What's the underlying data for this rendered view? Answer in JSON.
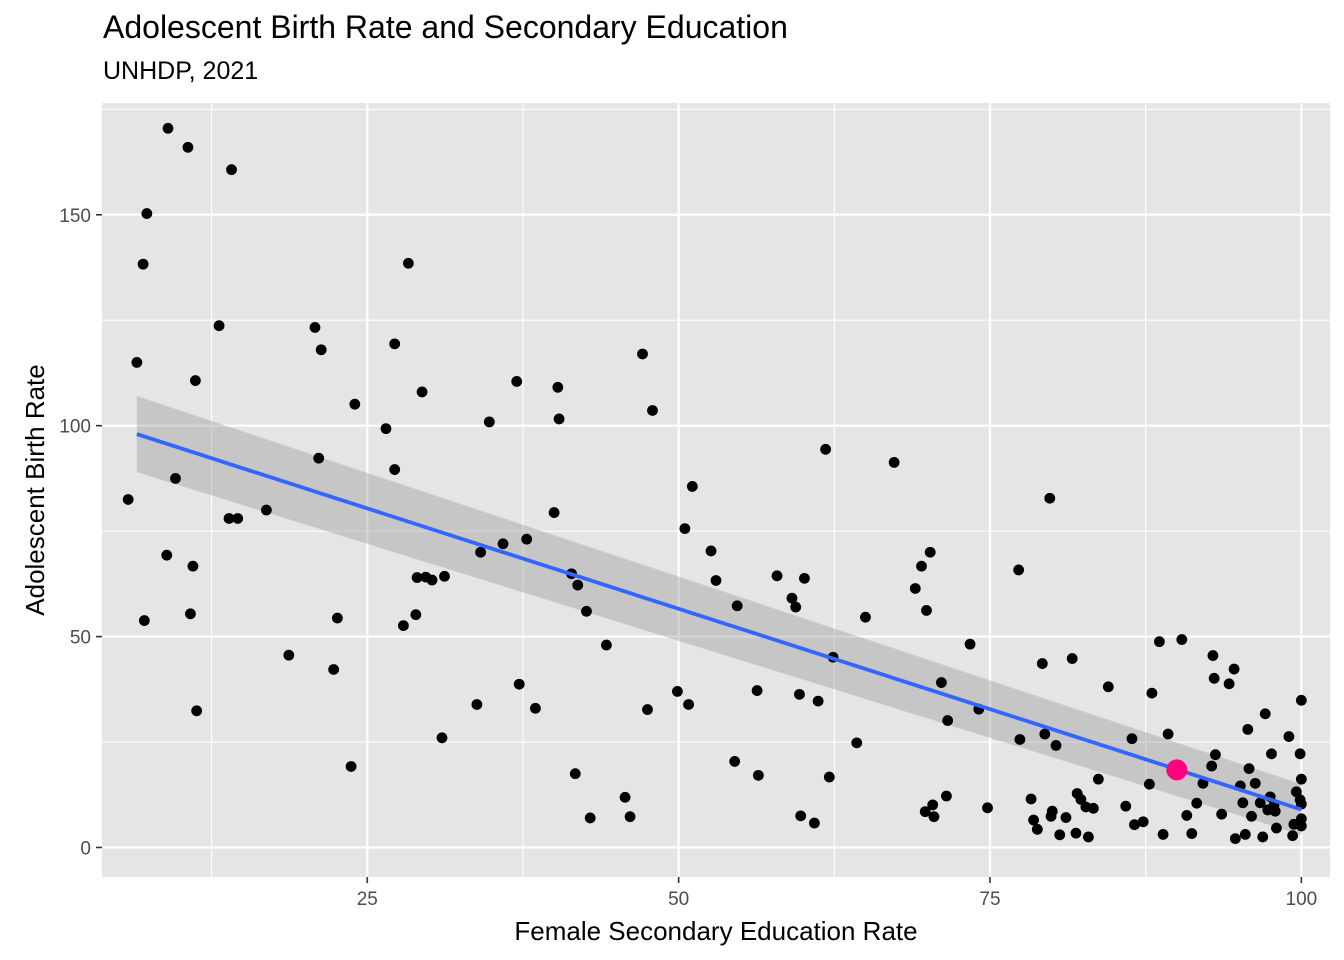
{
  "chart_data": {
    "type": "scatter",
    "title": "Adolescent Birth Rate and Secondary Education",
    "subtitle": "UNHDP, 2021",
    "xlabel": "Female Secondary Education Rate",
    "ylabel": "Adolescent Birth Rate",
    "xlim": [
      3.7,
      102.3
    ],
    "ylim": [
      -7,
      176.5
    ],
    "xticks": [
      25,
      50,
      75,
      100
    ],
    "yticks": [
      0,
      50,
      100,
      150
    ],
    "grid": true,
    "point_color": "#000000",
    "highlight_color": "#FF0080",
    "trend_color": "#3366FF",
    "band_color": "#999999",
    "panel_color": "#E5E5E5",
    "highlight": {
      "x": 90.0,
      "y": 18.4
    },
    "trend": {
      "x": [
        6.5,
        100
      ],
      "y": [
        98,
        9
      ],
      "band_lower": [
        89,
        3
      ],
      "band_upper": [
        107,
        15
      ]
    },
    "points": [
      [
        5.8,
        82.5
      ],
      [
        6.5,
        115
      ],
      [
        7,
        138.3
      ],
      [
        7.3,
        150.3
      ],
      [
        7.1,
        53.8
      ],
      [
        9,
        170.5
      ],
      [
        8.9,
        69.3
      ],
      [
        9.6,
        87.5
      ],
      [
        10.6,
        166
      ],
      [
        10.8,
        55.4
      ],
      [
        11,
        66.7
      ],
      [
        11.2,
        110.7
      ],
      [
        11.3,
        32.4
      ],
      [
        13.1,
        123.7
      ],
      [
        13.9,
        78
      ],
      [
        14.1,
        160.7
      ],
      [
        14.6,
        78
      ],
      [
        16.9,
        80
      ],
      [
        18.7,
        45.6
      ],
      [
        20.8,
        123.3
      ],
      [
        21.1,
        92.3
      ],
      [
        21.3,
        118
      ],
      [
        22.3,
        42.2
      ],
      [
        22.6,
        54.4
      ],
      [
        23.7,
        19.2
      ],
      [
        24,
        105.1
      ],
      [
        26.5,
        99.3
      ],
      [
        27.2,
        119.4
      ],
      [
        27.2,
        89.6
      ],
      [
        27.9,
        52.6
      ],
      [
        28.3,
        138.5
      ],
      [
        28.9,
        55.2
      ],
      [
        29,
        64
      ],
      [
        29.4,
        108
      ],
      [
        29.7,
        64.1
      ],
      [
        30.2,
        63.4
      ],
      [
        31,
        26
      ],
      [
        31.2,
        64.3
      ],
      [
        33.8,
        33.9
      ],
      [
        34.1,
        70
      ],
      [
        34.8,
        100.9
      ],
      [
        35.9,
        72
      ],
      [
        37,
        110.5
      ],
      [
        37.2,
        38.7
      ],
      [
        37.8,
        73.1
      ],
      [
        38.5,
        33
      ],
      [
        40,
        79.4
      ],
      [
        40.3,
        109.1
      ],
      [
        40.4,
        101.6
      ],
      [
        41.4,
        64.9
      ],
      [
        41.7,
        17.5
      ],
      [
        41.9,
        62.2
      ],
      [
        42.6,
        56
      ],
      [
        42.9,
        7
      ],
      [
        44.2,
        48
      ],
      [
        45.7,
        11.9
      ],
      [
        46.1,
        7.3
      ],
      [
        47.1,
        117
      ],
      [
        47.5,
        32.7
      ],
      [
        47.9,
        103.6
      ],
      [
        49.9,
        37
      ],
      [
        50.5,
        75.6
      ],
      [
        50.8,
        33.9
      ],
      [
        51.1,
        85.6
      ],
      [
        52.6,
        70.3
      ],
      [
        53,
        63.3
      ],
      [
        54.5,
        20.4
      ],
      [
        54.7,
        57.3
      ],
      [
        56.3,
        37.2
      ],
      [
        56.4,
        17.1
      ],
      [
        57.9,
        64.4
      ],
      [
        59.1,
        59.1
      ],
      [
        59.4,
        57
      ],
      [
        59.7,
        36.3
      ],
      [
        59.8,
        7.5
      ],
      [
        60.1,
        63.8
      ],
      [
        60.9,
        5.8
      ],
      [
        61.2,
        34.7
      ],
      [
        61.8,
        94.4
      ],
      [
        62.1,
        16.7
      ],
      [
        62.4,
        45.1
      ],
      [
        64.3,
        24.8
      ],
      [
        65,
        54.6
      ],
      [
        67.3,
        91.3
      ],
      [
        69,
        61.4
      ],
      [
        69.5,
        66.7
      ],
      [
        69.8,
        8.5
      ],
      [
        69.9,
        56.2
      ],
      [
        70.2,
        70
      ],
      [
        70.4,
        10.1
      ],
      [
        70.5,
        7.3
      ],
      [
        71.1,
        39.1
      ],
      [
        71.5,
        12.2
      ],
      [
        71.6,
        30.1
      ],
      [
        73.4,
        48.2
      ],
      [
        74.1,
        32.8
      ],
      [
        74.8,
        9.4
      ],
      [
        77.3,
        65.8
      ],
      [
        77.4,
        25.6
      ],
      [
        78.3,
        11.5
      ],
      [
        78.5,
        6.5
      ],
      [
        78.8,
        4.3
      ],
      [
        79.2,
        43.6
      ],
      [
        79.4,
        26.9
      ],
      [
        79.9,
        7.4
      ],
      [
        79.8,
        82.8
      ],
      [
        80,
        8.6
      ],
      [
        80.3,
        24.2
      ],
      [
        80.6,
        3
      ],
      [
        81.1,
        7.1
      ],
      [
        81.6,
        44.8
      ],
      [
        81.9,
        3.4
      ],
      [
        82,
        12.8
      ],
      [
        82.3,
        11.4
      ],
      [
        82.7,
        9.6
      ],
      [
        82.9,
        2.5
      ],
      [
        83.3,
        9.3
      ],
      [
        83.7,
        16.2
      ],
      [
        84.5,
        38.1
      ],
      [
        85.9,
        9.8
      ],
      [
        86.4,
        25.8
      ],
      [
        86.6,
        5.4
      ],
      [
        87.3,
        6.1
      ],
      [
        87.8,
        15
      ],
      [
        88,
        36.6
      ],
      [
        88.6,
        48.8
      ],
      [
        88.9,
        3.1
      ],
      [
        89.3,
        26.9
      ],
      [
        90.4,
        49.3
      ],
      [
        90.8,
        7.6
      ],
      [
        91.2,
        3.3
      ],
      [
        91.6,
        10.5
      ],
      [
        92.1,
        15.2
      ],
      [
        92.8,
        19.3
      ],
      [
        92.9,
        45.5
      ],
      [
        93,
        40.1
      ],
      [
        93.1,
        22
      ],
      [
        93.6,
        7.9
      ],
      [
        94.2,
        38.8
      ],
      [
        94.6,
        42.3
      ],
      [
        94.7,
        2.1
      ],
      [
        95.1,
        14.6
      ],
      [
        95.3,
        10.6
      ],
      [
        95.5,
        3.1
      ],
      [
        95.7,
        28
      ],
      [
        95.8,
        18.7
      ],
      [
        96,
        7.4
      ],
      [
        96.3,
        15.2
      ],
      [
        96.7,
        10.6
      ],
      [
        96.9,
        2.5
      ],
      [
        97.1,
        31.7
      ],
      [
        97.3,
        8.9
      ],
      [
        97.5,
        12
      ],
      [
        97.6,
        22.2
      ],
      [
        97.8,
        10
      ],
      [
        97.9,
        8.6
      ],
      [
        98,
        4.6
      ],
      [
        99,
        26.3
      ],
      [
        99.3,
        2.8
      ],
      [
        99.4,
        5.5
      ],
      [
        99.6,
        13.2
      ],
      [
        99.9,
        11.3
      ],
      [
        99.9,
        22.2
      ],
      [
        100,
        16.2
      ],
      [
        100,
        34.9
      ],
      [
        100,
        6.8
      ],
      [
        100,
        5.1
      ],
      [
        100,
        10.3
      ]
    ]
  }
}
